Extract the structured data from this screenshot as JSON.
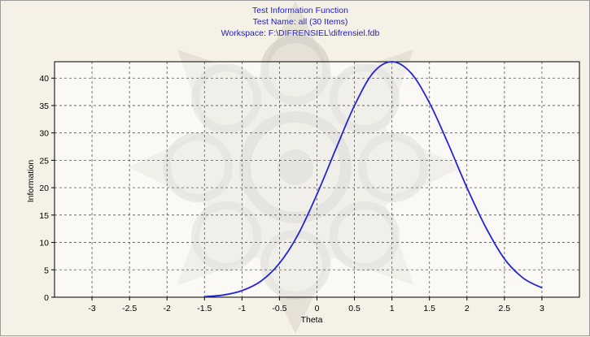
{
  "window": {
    "background_color": "#f6f1e6",
    "watermark_color": "#bdb8b2"
  },
  "chart_data": {
    "type": "line",
    "title_lines": [
      "Test Information Function",
      "Test Name: all (30 Items)",
      "Workspace: F:\\DIFRENSIEL\\difrensiel.fdb"
    ],
    "xlabel": "Theta",
    "ylabel": "Information",
    "xlim": [
      -3.5,
      3.5
    ],
    "ylim": [
      0,
      43
    ],
    "x_ticks": [
      -3,
      -2.5,
      -2,
      -1.5,
      -1,
      -0.5,
      0,
      0.5,
      1,
      1.5,
      2,
      2.5,
      3
    ],
    "x_tick_labels": [
      "-3",
      "-2.5",
      "-2",
      "-1.5",
      "-1",
      "-0.5",
      "0",
      "0.5",
      "1",
      "1.5",
      "2",
      "2.5",
      "3"
    ],
    "y_ticks": [
      0,
      5,
      10,
      15,
      20,
      25,
      30,
      35,
      40
    ],
    "y_tick_labels": [
      "0",
      "5",
      "10",
      "15",
      "20",
      "25",
      "30",
      "35",
      "40"
    ],
    "grid": true,
    "grid_style": "dashed",
    "line_color": "#2424d8",
    "series": [
      {
        "x": [
          -1.5,
          -1.25,
          -1.0,
          -0.75,
          -0.5,
          -0.25,
          0.0,
          0.25,
          0.5,
          0.75,
          1.0,
          1.25,
          1.5,
          1.75,
          2.0,
          2.25,
          2.5,
          2.75,
          3.0
        ],
        "values": [
          0.1,
          0.4,
          1.2,
          2.9,
          6.2,
          11.5,
          18.8,
          27.0,
          35.0,
          41.0,
          43.0,
          41.0,
          35.5,
          28.0,
          20.0,
          12.8,
          7.0,
          3.5,
          1.7
        ]
      }
    ]
  }
}
